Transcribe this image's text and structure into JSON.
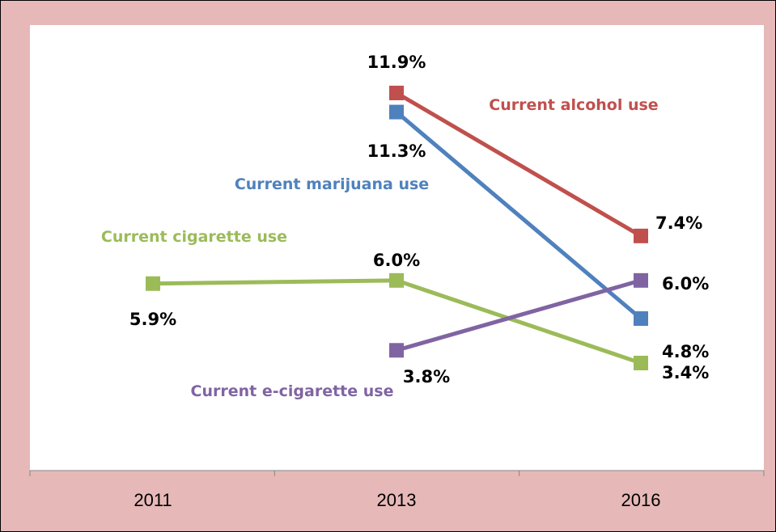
{
  "chart_data": {
    "type": "line",
    "categories": [
      "2011",
      "2013",
      "2016"
    ],
    "series": [
      {
        "name": "Current alcohol use",
        "color": "#c0504d",
        "values": [
          null,
          11.9,
          7.4
        ],
        "labels": [
          null,
          "11.9%",
          "7.4%"
        ]
      },
      {
        "name": "Current marijuana use",
        "color": "#4f81bd",
        "values": [
          null,
          11.3,
          4.8
        ],
        "labels": [
          null,
          "11.3%",
          "4.8%"
        ]
      },
      {
        "name": "Current cigarette use",
        "color": "#9bbb59",
        "values": [
          5.9,
          6.0,
          3.4
        ],
        "labels": [
          "5.9%",
          "6.0%",
          "3.4%"
        ]
      },
      {
        "name": "Current e-cigarette use",
        "color": "#8064a2",
        "values": [
          null,
          3.8,
          6.0
        ],
        "labels": [
          null,
          "3.8%",
          "6.0%"
        ]
      }
    ],
    "y_axis_visible": false,
    "grid": false,
    "legend": "inline series labels"
  }
}
